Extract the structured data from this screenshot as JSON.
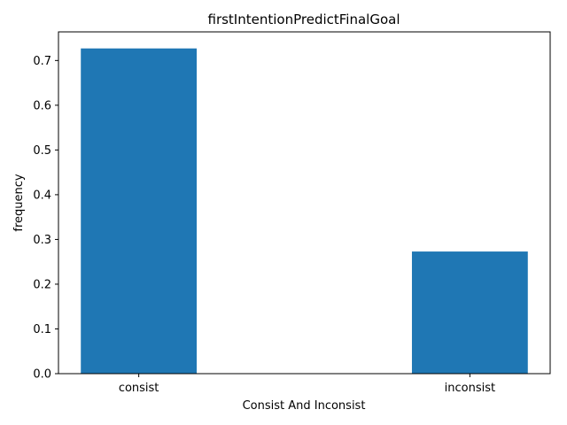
{
  "chart_data": {
    "type": "bar",
    "title": "firstIntentionPredictFinalGoal",
    "xlabel": "Consist And Inconsist",
    "ylabel": "frequency",
    "categories": [
      "consist",
      "inconsist"
    ],
    "values": [
      0.727,
      0.273
    ],
    "ylim": [
      0,
      0.764
    ],
    "yticks": [
      "0.0",
      "0.1",
      "0.2",
      "0.3",
      "0.4",
      "0.5",
      "0.6",
      "0.7"
    ],
    "bar_color": "#1f77b4",
    "grid": false,
    "legend": "none"
  }
}
